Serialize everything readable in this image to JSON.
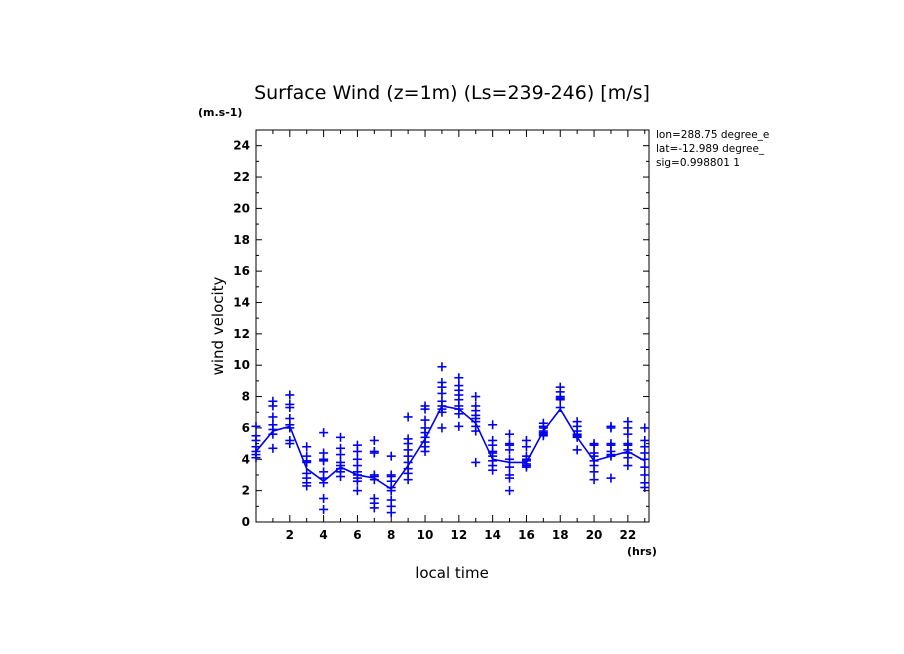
{
  "chart_data": {
    "type": "scatter",
    "title": "Surface Wind (z=1m) (Ls=239-246) [m/s]",
    "units_label": "(m.s-1)",
    "ylabel": "wind velocity",
    "xlabel": "local time",
    "x_units": "(hrs)",
    "info_lines": [
      "lon=288.75 degree_e",
      "lat=-12.989 degree_",
      "sig=0.998801 1"
    ],
    "xlim": [
      0,
      23.25
    ],
    "ylim": [
      0,
      25
    ],
    "x_ticks": [
      2,
      4,
      6,
      8,
      10,
      12,
      14,
      16,
      18,
      20,
      22
    ],
    "y_ticks": [
      0,
      2,
      4,
      6,
      8,
      10,
      12,
      14,
      16,
      18,
      20,
      22,
      24
    ],
    "color": "#0000ee",
    "series": [
      {
        "name": "",
        "style": "line",
        "x": [
          0,
          1,
          2,
          3,
          4,
          5,
          6,
          7,
          8,
          9,
          10,
          11,
          12,
          13,
          14,
          15,
          16,
          17,
          18,
          19,
          20,
          21,
          22,
          23
        ],
        "y": [
          4.5,
          5.8,
          6.1,
          3.4,
          2.6,
          3.5,
          3.0,
          2.8,
          2.1,
          3.6,
          5.3,
          7.4,
          7.2,
          6.3,
          4.0,
          3.8,
          3.8,
          5.8,
          7.2,
          5.4,
          3.9,
          4.2,
          4.5,
          3.9
        ]
      },
      {
        "name": "",
        "style": "markers",
        "points": [
          {
            "x": 0,
            "ys": [
              6.1,
              5.5,
              5.2,
              4.8,
              4.5,
              4.3,
              4.1
            ]
          },
          {
            "x": 1,
            "ys": [
              7.7,
              7.4,
              6.7,
              6.2,
              5.9,
              5.6,
              4.7
            ]
          },
          {
            "x": 2,
            "ys": [
              8.1,
              7.5,
              7.3,
              6.6,
              6.2,
              6.0,
              5.2,
              5.0
            ]
          },
          {
            "x": 3,
            "ys": [
              4.8,
              4.2,
              3.9,
              3.8,
              3.1,
              2.8,
              2.5,
              2.3
            ]
          },
          {
            "x": 4,
            "ys": [
              5.7,
              4.4,
              4.0,
              3.9,
              3.2,
              2.8,
              2.5,
              1.5,
              0.8
            ]
          },
          {
            "x": 5,
            "ys": [
              5.4,
              4.7,
              4.3,
              3.8,
              3.6,
              3.4,
              3.2,
              2.9
            ]
          },
          {
            "x": 6,
            "ys": [
              4.9,
              4.5,
              4.0,
              3.6,
              3.2,
              3.0,
              2.8,
              2.6,
              2.0
            ]
          },
          {
            "x": 7,
            "ys": [
              5.2,
              4.5,
              4.4,
              3.0,
              2.9,
              2.7,
              1.5,
              1.2,
              0.9
            ]
          },
          {
            "x": 8,
            "ys": [
              4.2,
              3.0,
              2.9,
              2.6,
              2.2,
              2.0,
              1.4,
              1.0,
              0.6
            ]
          },
          {
            "x": 9,
            "ys": [
              6.7,
              5.3,
              5.0,
              4.6,
              4.2,
              3.8,
              3.4,
              3.1,
              2.7
            ]
          },
          {
            "x": 10,
            "ys": [
              7.4,
              7.2,
              6.5,
              6.0,
              5.7,
              5.4,
              5.1,
              4.8,
              4.5
            ]
          },
          {
            "x": 11,
            "ys": [
              9.9,
              8.9,
              8.6,
              8.2,
              7.7,
              7.4,
              7.2,
              7.0,
              6.0
            ]
          },
          {
            "x": 12,
            "ys": [
              9.2,
              8.7,
              8.4,
              8.1,
              7.8,
              7.4,
              7.2,
              6.9,
              6.1
            ]
          },
          {
            "x": 13,
            "ys": [
              8.0,
              7.4,
              7.1,
              6.8,
              6.6,
              6.4,
              6.1,
              5.8,
              3.8
            ]
          },
          {
            "x": 14,
            "ys": [
              6.2,
              5.2,
              4.9,
              4.5,
              4.4,
              4.2,
              3.9,
              3.6,
              3.3
            ]
          },
          {
            "x": 15,
            "ys": [
              5.6,
              5.0,
              4.9,
              4.6,
              4.0,
              3.5,
              3.0,
              2.8,
              2.0
            ]
          },
          {
            "x": 16,
            "ys": [
              5.2,
              4.8,
              4.2,
              4.0,
              3.9,
              3.7,
              3.6,
              3.5
            ]
          },
          {
            "x": 17,
            "ys": [
              6.3,
              6.1,
              6.0,
              5.8,
              5.7,
              5.6,
              5.5
            ]
          },
          {
            "x": 18,
            "ys": [
              8.6,
              8.3,
              8.0,
              7.9,
              7.8,
              7.3
            ]
          },
          {
            "x": 19,
            "ys": [
              6.4,
              6.1,
              5.8,
              5.6,
              5.5,
              5.4,
              4.6
            ]
          },
          {
            "x": 20,
            "ys": [
              5.0,
              4.9,
              4.4,
              4.2,
              3.9,
              3.6,
              3.2,
              2.7
            ]
          },
          {
            "x": 21,
            "ys": [
              6.1,
              6.0,
              5.0,
              4.9,
              4.5,
              4.3,
              4.2,
              2.8
            ]
          },
          {
            "x": 22,
            "ys": [
              6.4,
              6.0,
              5.6,
              5.0,
              4.9,
              4.6,
              4.4,
              4.1,
              3.6
            ]
          },
          {
            "x": 23,
            "ys": [
              6.0,
              5.2,
              4.8,
              4.4,
              4.0,
              3.5,
              3.0,
              2.5,
              2.2
            ]
          }
        ]
      }
    ]
  }
}
